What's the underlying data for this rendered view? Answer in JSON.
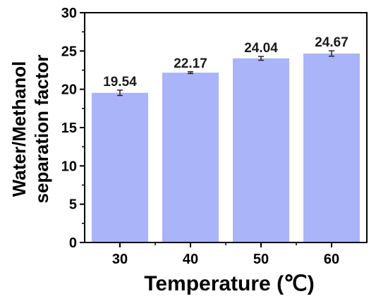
{
  "chart_data": {
    "type": "bar",
    "categories": [
      "30",
      "40",
      "50",
      "60"
    ],
    "values": [
      19.54,
      22.17,
      24.04,
      24.67
    ],
    "errors": [
      0.35,
      0.12,
      0.25,
      0.35
    ],
    "data_labels": [
      "19.54",
      "22.17",
      "24.04",
      "24.67"
    ],
    "xlabel": "Temperature (℃)",
    "ylabel_lines": [
      "Water/Methanol",
      "separation factor"
    ],
    "ylim": [
      0,
      30
    ],
    "yticks": [
      0,
      5,
      10,
      15,
      20,
      25,
      30
    ],
    "ytick_labels": [
      "0",
      "5",
      "10",
      "15",
      "20",
      "25",
      "30"
    ],
    "grid": false,
    "bar_color": "#aab4f8",
    "axis_color": "#000000"
  }
}
